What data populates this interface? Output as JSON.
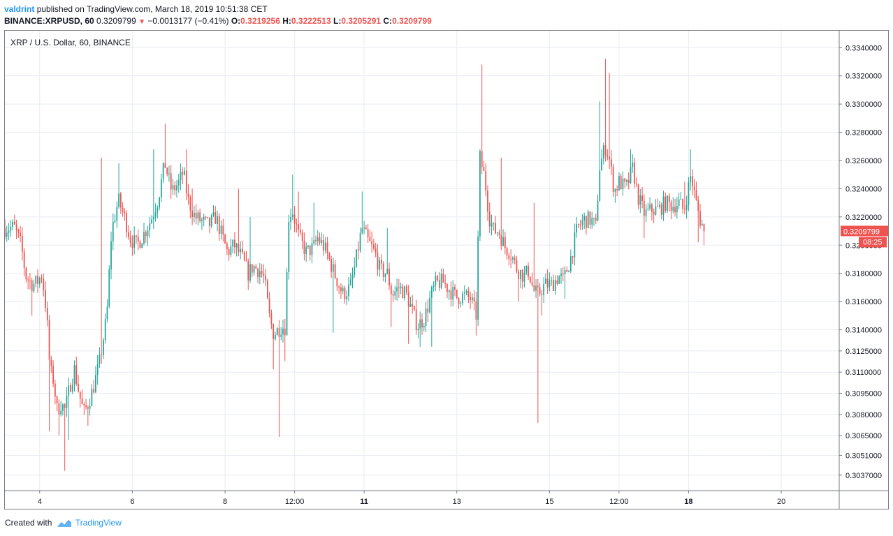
{
  "header": {
    "user": "valdrint",
    "published_text": "published on TradingView.com, March 18, 2019 10:51:38 CET"
  },
  "ohlc": {
    "symbol": "BINANCE:XRPUSD, 60",
    "last": "0.3209799",
    "arrow": "▼",
    "change": "−0.0013177 (−0.41%)",
    "o_label": "O:",
    "o": "0.3219256",
    "h_label": "H:",
    "h": "0.3222513",
    "l_label": "L:",
    "l": "0.3205291",
    "c_label": "C:",
    "c": "0.3209799"
  },
  "footer": {
    "created_with": "Created with",
    "brand": "TradingView"
  },
  "colors": {
    "up": "#26a69a",
    "down": "#ef5350",
    "grid": "#e8ecf1",
    "axis": "#787b86",
    "brand": "#2196f3"
  },
  "chart_data": {
    "type": "candlestick",
    "title": "XRP / U.S. Dollar, 60, BINANCE",
    "ylim": [
      0.3026,
      0.3352
    ],
    "y_ticks": [
      "0.3037000",
      "0.3051000",
      "0.3065000",
      "0.3080000",
      "0.3095000",
      "0.3110000",
      "0.3125000",
      "0.3140000",
      "0.3160000",
      "0.3180000",
      "0.3200000",
      "0.3220000",
      "0.3240000",
      "0.3260000",
      "0.3280000",
      "0.3300000",
      "0.3320000",
      "0.3340000"
    ],
    "x_ticks": [
      {
        "label": "4",
        "day": 4.0,
        "bold": false
      },
      {
        "label": "6",
        "day": 6.0,
        "bold": false
      },
      {
        "label": "8",
        "day": 8.0,
        "bold": false
      },
      {
        "label": "12:00",
        "day": 9.5,
        "bold": false
      },
      {
        "label": "11",
        "day": 11.0,
        "bold": true
      },
      {
        "label": "13",
        "day": 13.0,
        "bold": false
      },
      {
        "label": "15",
        "day": 15.0,
        "bold": false
      },
      {
        "label": "12:00",
        "day": 16.5,
        "bold": false
      },
      {
        "label": "18",
        "day": 18.0,
        "bold": true
      },
      {
        "label": "20",
        "day": 20.0,
        "bold": false
      }
    ],
    "x_range_days": [
      3.25,
      21.25
    ],
    "last_price": "0.3209799",
    "countdown": "08:25",
    "anchors": [
      [
        3.25,
        0.3212
      ],
      [
        3.45,
        0.3213
      ],
      [
        3.6,
        0.32
      ],
      [
        3.7,
        0.3178
      ],
      [
        3.85,
        0.3172
      ],
      [
        3.95,
        0.3174
      ],
      [
        4.05,
        0.3179
      ],
      [
        4.15,
        0.3152
      ],
      [
        4.22,
        0.3112
      ],
      [
        4.3,
        0.3104
      ],
      [
        4.38,
        0.3082
      ],
      [
        4.45,
        0.3088
      ],
      [
        4.55,
        0.3083
      ],
      [
        4.65,
        0.31
      ],
      [
        4.75,
        0.3112
      ],
      [
        4.85,
        0.3095
      ],
      [
        4.95,
        0.3081
      ],
      [
        5.05,
        0.3088
      ],
      [
        5.15,
        0.3098
      ],
      [
        5.3,
        0.3118
      ],
      [
        5.45,
        0.315
      ],
      [
        5.55,
        0.321
      ],
      [
        5.7,
        0.3232
      ],
      [
        5.85,
        0.3218
      ],
      [
        5.95,
        0.3205
      ],
      [
        6.1,
        0.32
      ],
      [
        6.25,
        0.3208
      ],
      [
        6.4,
        0.3218
      ],
      [
        6.55,
        0.3232
      ],
      [
        6.7,
        0.3258
      ],
      [
        6.85,
        0.3238
      ],
      [
        7.0,
        0.3244
      ],
      [
        7.1,
        0.3252
      ],
      [
        7.2,
        0.3232
      ],
      [
        7.35,
        0.322
      ],
      [
        7.5,
        0.3217
      ],
      [
        7.65,
        0.3214
      ],
      [
        7.8,
        0.322
      ],
      [
        7.9,
        0.321
      ],
      [
        8.05,
        0.3195
      ],
      [
        8.2,
        0.32
      ],
      [
        8.35,
        0.3192
      ],
      [
        8.5,
        0.318
      ],
      [
        8.6,
        0.3185
      ],
      [
        8.75,
        0.3182
      ],
      [
        8.85,
        0.3176
      ],
      [
        8.95,
        0.315
      ],
      [
        9.05,
        0.3137
      ],
      [
        9.2,
        0.3142
      ],
      [
        9.3,
        0.3142
      ],
      [
        9.37,
        0.322
      ],
      [
        9.45,
        0.3225
      ],
      [
        9.6,
        0.3205
      ],
      [
        9.75,
        0.3195
      ],
      [
        9.9,
        0.3198
      ],
      [
        10.0,
        0.3205
      ],
      [
        10.15,
        0.3198
      ],
      [
        10.3,
        0.3185
      ],
      [
        10.45,
        0.3172
      ],
      [
        10.55,
        0.3165
      ],
      [
        10.7,
        0.317
      ],
      [
        10.8,
        0.3185
      ],
      [
        10.95,
        0.3212
      ],
      [
        11.1,
        0.3202
      ],
      [
        11.25,
        0.3193
      ],
      [
        11.35,
        0.3182
      ],
      [
        11.5,
        0.318
      ],
      [
        11.6,
        0.3165
      ],
      [
        11.75,
        0.317
      ],
      [
        11.9,
        0.3166
      ],
      [
        12.05,
        0.3152
      ],
      [
        12.15,
        0.3143
      ],
      [
        12.3,
        0.3148
      ],
      [
        12.45,
        0.3165
      ],
      [
        12.55,
        0.3173
      ],
      [
        12.7,
        0.3174
      ],
      [
        12.85,
        0.3168
      ],
      [
        13.0,
        0.3163
      ],
      [
        13.15,
        0.3164
      ],
      [
        13.3,
        0.3162
      ],
      [
        13.42,
        0.315
      ],
      [
        13.5,
        0.3262
      ],
      [
        13.6,
        0.3248
      ],
      [
        13.7,
        0.322
      ],
      [
        13.8,
        0.321
      ],
      [
        13.9,
        0.321
      ],
      [
        14.05,
        0.3198
      ],
      [
        14.15,
        0.3195
      ],
      [
        14.3,
        0.3183
      ],
      [
        14.45,
        0.3178
      ],
      [
        14.55,
        0.3182
      ],
      [
        14.65,
        0.3168
      ],
      [
        14.75,
        0.3165
      ],
      [
        14.9,
        0.3172
      ],
      [
        15.05,
        0.3172
      ],
      [
        15.2,
        0.3178
      ],
      [
        15.3,
        0.3175
      ],
      [
        15.45,
        0.319
      ],
      [
        15.6,
        0.3212
      ],
      [
        15.75,
        0.3218
      ],
      [
        15.9,
        0.3218
      ],
      [
        16.0,
        0.3213
      ],
      [
        16.08,
        0.3255
      ],
      [
        16.2,
        0.327
      ],
      [
        16.28,
        0.3263
      ],
      [
        16.4,
        0.3238
      ],
      [
        16.5,
        0.3245
      ],
      [
        16.65,
        0.324
      ],
      [
        16.8,
        0.3255
      ],
      [
        16.9,
        0.3235
      ],
      [
        17.05,
        0.3222
      ],
      [
        17.2,
        0.3225
      ],
      [
        17.35,
        0.3225
      ],
      [
        17.5,
        0.323
      ],
      [
        17.65,
        0.3228
      ],
      [
        17.8,
        0.323
      ],
      [
        17.9,
        0.3224
      ],
      [
        18.05,
        0.325
      ],
      [
        18.15,
        0.3232
      ],
      [
        18.25,
        0.3218
      ],
      [
        18.35,
        0.3209799
      ]
    ],
    "spikes": [
      [
        3.85,
        0.315
      ],
      [
        4.22,
        0.3068
      ],
      [
        4.4,
        0.3065
      ],
      [
        4.55,
        0.304
      ],
      [
        4.62,
        0.3062
      ],
      [
        5.05,
        0.3072
      ],
      [
        5.35,
        0.3262
      ],
      [
        5.7,
        0.3258
      ],
      [
        6.45,
        0.3268
      ],
      [
        6.7,
        0.3286
      ],
      [
        7.15,
        0.3268
      ],
      [
        7.3,
        0.324
      ],
      [
        8.3,
        0.324
      ],
      [
        8.55,
        0.322
      ],
      [
        9.05,
        0.3112
      ],
      [
        9.15,
        0.3064
      ],
      [
        9.3,
        0.3118
      ],
      [
        9.45,
        0.325
      ],
      [
        9.6,
        0.3238
      ],
      [
        9.9,
        0.323
      ],
      [
        10.35,
        0.3138
      ],
      [
        10.5,
        0.3162
      ],
      [
        10.95,
        0.3238
      ],
      [
        11.5,
        0.3212
      ],
      [
        11.6,
        0.3142
      ],
      [
        11.95,
        0.313
      ],
      [
        12.2,
        0.3128
      ],
      [
        12.45,
        0.3128
      ],
      [
        13.42,
        0.3136
      ],
      [
        13.55,
        0.3328
      ],
      [
        13.95,
        0.3262
      ],
      [
        14.35,
        0.316
      ],
      [
        14.65,
        0.323
      ],
      [
        14.75,
        0.3074
      ],
      [
        14.85,
        0.315
      ],
      [
        15.35,
        0.3162
      ],
      [
        16.1,
        0.3302
      ],
      [
        16.2,
        0.3332
      ],
      [
        16.3,
        0.3322
      ],
      [
        16.4,
        0.323
      ],
      [
        16.75,
        0.3268
      ],
      [
        17.05,
        0.3205
      ],
      [
        17.45,
        0.3238
      ],
      [
        17.9,
        0.3245
      ],
      [
        18.05,
        0.3268
      ],
      [
        18.2,
        0.3202
      ],
      [
        18.35,
        0.32
      ]
    ]
  }
}
